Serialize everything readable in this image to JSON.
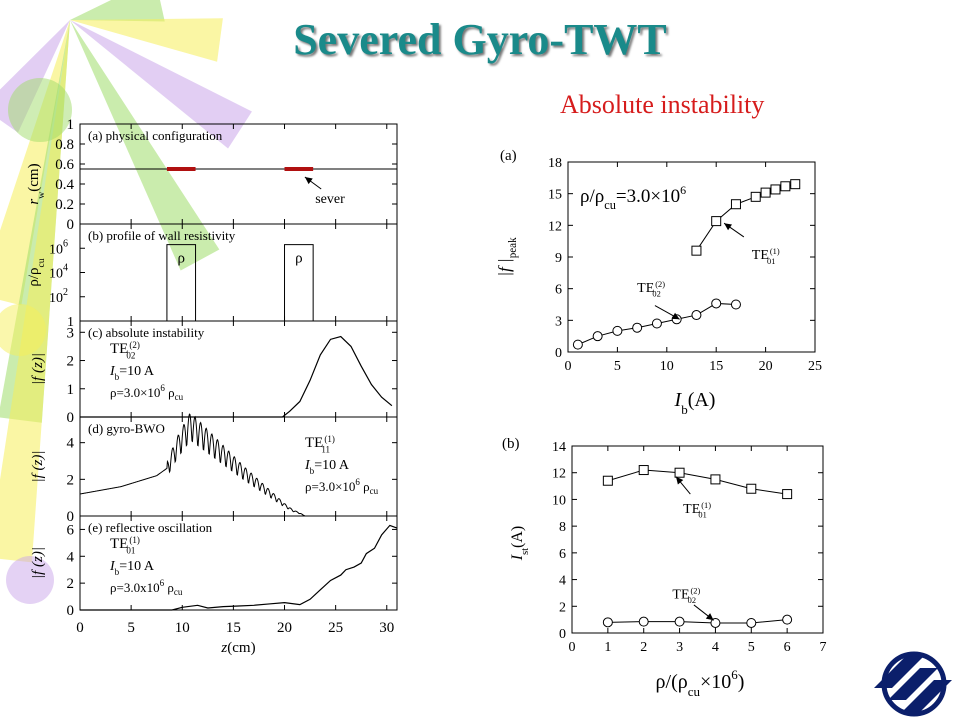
{
  "slide": {
    "title": "Severed Gyro-TWT",
    "subtitle": "Absolute instability"
  },
  "colors": {
    "title": "#1a8a8a",
    "subtitle": "#d61c1c",
    "sever": "#b01010",
    "logo": "#0b1f6b",
    "sun_yellow": "#f5ef5a",
    "sun_green": "#9fdc6a",
    "sun_violet": "#caa6ea"
  },
  "chart_data": [
    {
      "id": "left-panels",
      "type": "line",
      "xlabel_main": "z",
      "xlabel_unit": "(cm)",
      "xlim": [
        0,
        31
      ],
      "xticks": [
        0,
        5,
        10,
        15,
        20,
        25,
        30
      ],
      "panels": [
        {
          "key": "a",
          "label": "(a) physical configuration",
          "ylabel_main": "r",
          "ylabel_sub": "w",
          "ylabel_unit": "(cm)",
          "ylim": [
            0,
            1
          ],
          "yticks": [
            "0",
            "0.2",
            "0.4",
            "0.6",
            "0.8",
            "1"
          ],
          "wall_radius": 0.55,
          "severs": [
            {
              "x0": 8.5,
              "x1": 11.3
            },
            {
              "x0": 20.0,
              "x1": 22.8
            }
          ],
          "annotation": "sever",
          "annotation_xy": [
            23,
            0.21
          ],
          "arrow_to": [
            21.6,
            0.53
          ]
        },
        {
          "key": "b",
          "label": "(b) profile of wall resistivity",
          "ylabel_main": "ρ/ρ",
          "ylabel_sub": "cu",
          "ylim": [
            0,
            8
          ],
          "yticks": [
            {
              "v": 0,
              "base": "1",
              "exp": ""
            },
            {
              "v": 2,
              "base": "10",
              "exp": "2"
            },
            {
              "v": 4,
              "base": "10",
              "exp": "4"
            },
            {
              "v": 6,
              "base": "10",
              "exp": "6"
            }
          ],
          "blocks": [
            {
              "x0": 8.5,
              "x1": 11.3,
              "top": 6.3
            },
            {
              "x0": 20.0,
              "x1": 22.8,
              "top": 6.3
            }
          ],
          "block_label": "ρ"
        },
        {
          "key": "c",
          "label": "(c) absolute instability",
          "ylabel_main": "|f (z)|",
          "ylim": [
            0,
            3.4
          ],
          "yticks": [
            "0",
            "1",
            "2",
            "3"
          ],
          "mode": "TE",
          "mode_sub": "02",
          "mode_sup": "(2)",
          "current": "I",
          "current_sub": "b",
          "current_val": "=10 A",
          "rho_text": "ρ=3.0×10",
          "rho_exp": "6",
          "rho_tail": " ρ",
          "rho_sub": "cu",
          "x": [
            0,
            19.8,
            20.5,
            21.5,
            22.5,
            23.5,
            24.5,
            25.5,
            26.5,
            27.5,
            28.5,
            29.5,
            30.5
          ],
          "y": [
            0,
            0,
            0.2,
            0.55,
            1.3,
            2.2,
            2.75,
            2.85,
            2.5,
            1.8,
            1.15,
            0.7,
            0.4
          ]
        },
        {
          "key": "d",
          "label": "(d) gyro-BWO",
          "ylabel_main": "|f (z)|",
          "ylim": [
            0,
            5.4
          ],
          "yticks": [
            "0",
            "2",
            "4"
          ],
          "mode": "TE",
          "mode_sub": "11",
          "mode_sup": "(1)",
          "current": "I",
          "current_sub": "b",
          "current_val": "=10 A",
          "rho_text": "ρ=3.0×10",
          "rho_exp": "6",
          "rho_tail": " ρ",
          "rho_sub": "cu",
          "envelope_x": [
            0,
            4,
            7.5,
            8.5,
            9.5,
            10.8,
            12,
            14,
            16,
            18,
            20,
            20.8,
            21.5,
            22
          ],
          "envelope_y": [
            1.2,
            1.6,
            2.2,
            2.6,
            3.8,
            5.0,
            4.4,
            3.4,
            2.4,
            1.5,
            0.6,
            0.3,
            0.15,
            0
          ],
          "ripple_start": 8.5,
          "ripple_end": 21.8,
          "ripple_period": 0.55,
          "ripple_depth": 0.22
        },
        {
          "key": "e",
          "label": "(e) reflective oscillation",
          "ylabel_main": "|f (z)|",
          "ylim": [
            0,
            7
          ],
          "yticks": [
            "0",
            "2",
            "4",
            "6"
          ],
          "mode": "TE",
          "mode_sub": "01",
          "mode_sup": "(1)",
          "current": "I",
          "current_sub": "b",
          "current_val": "=10 A",
          "rho_text": "ρ=3.0x10",
          "rho_exp": "6",
          "rho_tail": " ρ",
          "rho_sub": "cu",
          "x": [
            0,
            9,
            10,
            11.5,
            12.5,
            14,
            15.5,
            17,
            18.5,
            20,
            21.5,
            22.5,
            23.5,
            24.5,
            25.5,
            26,
            26.8,
            27.5,
            28,
            28.8,
            29.5,
            30.3,
            31
          ],
          "y": [
            0,
            0,
            0.2,
            0.35,
            0.15,
            0.25,
            0.3,
            0.35,
            0.45,
            0.55,
            0.4,
            0.8,
            1.5,
            2.2,
            2.6,
            3.0,
            3.2,
            3.5,
            4.2,
            4.6,
            5.6,
            6.3,
            6.1
          ]
        }
      ]
    },
    {
      "id": "right-a",
      "type": "line",
      "panel_label": "(a)",
      "ylabel_main": "|f |",
      "ylabel_sub": "peak",
      "xlabel_main": "I",
      "xlabel_sub": "b",
      "xlabel_unit": "(A)",
      "xlim": [
        0,
        25
      ],
      "ylim": [
        0,
        18
      ],
      "xticks": [
        0,
        5,
        10,
        15,
        20,
        25
      ],
      "yticks": [
        0,
        3,
        6,
        9,
        12,
        15,
        18
      ],
      "annotation_rho": "ρ/ρ",
      "annotation_rho_sub": "cu",
      "annotation_rho_val": "=3.0×10",
      "annotation_rho_exp": "6",
      "series": [
        {
          "name": "TE",
          "sub": "01",
          "sup": "(1)",
          "marker": "square",
          "x": [
            13,
            15,
            17,
            19,
            20,
            21,
            22,
            23
          ],
          "y": [
            9.6,
            12.4,
            14.0,
            14.7,
            15.1,
            15.4,
            15.7,
            15.9
          ],
          "label_xy": [
            18.6,
            8.8
          ],
          "arrow_from": [
            17.8,
            10.9
          ],
          "arrow_to": [
            15.8,
            12.2
          ]
        },
        {
          "name": "TE",
          "sub": "02",
          "sup": "(2)",
          "marker": "circle",
          "x": [
            1,
            3,
            5,
            7,
            9,
            11,
            13,
            15,
            17
          ],
          "y": [
            0.7,
            1.5,
            2.0,
            2.3,
            2.7,
            3.1,
            3.5,
            4.6,
            4.5
          ],
          "label_xy": [
            7.0,
            5.7
          ],
          "arrow_from": [
            8.8,
            4.4
          ],
          "arrow_to": [
            11.3,
            3.1
          ]
        }
      ]
    },
    {
      "id": "right-b",
      "type": "line",
      "panel_label": "(b)",
      "ylabel_main": "I",
      "ylabel_sub": "st",
      "ylabel_unit": "(A)",
      "xlabel_main": "ρ/(ρ",
      "xlabel_sub": "cu",
      "xlabel_mid": "×10",
      "xlabel_exp": "6",
      "xlabel_end": ")",
      "xlim": [
        0,
        7
      ],
      "ylim": [
        0,
        14
      ],
      "xticks": [
        0,
        1,
        2,
        3,
        4,
        5,
        6,
        7
      ],
      "yticks": [
        0,
        2,
        4,
        6,
        8,
        10,
        12,
        14
      ],
      "series": [
        {
          "name": "TE",
          "sub": "01",
          "sup": "(1)",
          "marker": "square",
          "x": [
            1,
            2,
            3,
            4,
            5,
            6
          ],
          "y": [
            11.4,
            12.2,
            12.0,
            11.5,
            10.8,
            10.4
          ],
          "label_xy": [
            3.1,
            9.0
          ],
          "arrow_from": [
            3.3,
            10.4
          ],
          "arrow_to": [
            2.9,
            11.7
          ]
        },
        {
          "name": "TE",
          "sub": "02",
          "sup": "(2)",
          "marker": "circle",
          "x": [
            1,
            2,
            3,
            4,
            5,
            6
          ],
          "y": [
            0.8,
            0.85,
            0.85,
            0.75,
            0.75,
            1.0
          ],
          "label_xy": [
            2.8,
            2.6
          ],
          "arrow_from": [
            3.4,
            2.1
          ],
          "arrow_to": [
            3.95,
            0.95
          ]
        }
      ]
    }
  ]
}
